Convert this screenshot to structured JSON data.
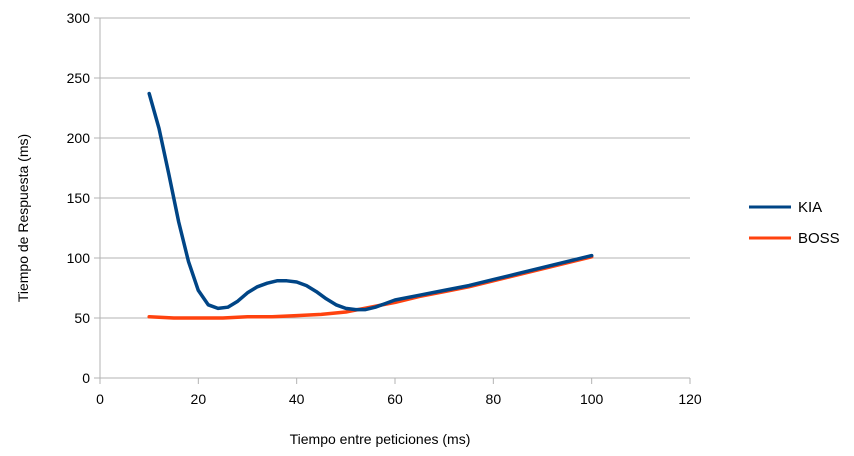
{
  "chart_data": {
    "type": "line",
    "xlabel": "Tiempo entre peticiones (ms)",
    "ylabel": "Tiempo de Respuesta (ms)",
    "xlim": [
      0,
      120
    ],
    "ylim": [
      0,
      300
    ],
    "xticks": [
      0,
      20,
      40,
      60,
      80,
      100,
      120
    ],
    "yticks": [
      0,
      50,
      100,
      150,
      200,
      250,
      300
    ],
    "grid": "horizontal",
    "legend_position": "right",
    "series": [
      {
        "name": "KIA",
        "color": "#004586",
        "x": [
          10,
          12,
          14,
          16,
          18,
          20,
          22,
          24,
          26,
          28,
          30,
          32,
          34,
          36,
          38,
          40,
          42,
          44,
          46,
          48,
          50,
          52,
          54,
          56,
          58,
          60,
          65,
          70,
          75,
          80,
          85,
          90,
          95,
          100
        ],
        "y": [
          237,
          208,
          170,
          130,
          97,
          73,
          61,
          58,
          59,
          64,
          71,
          76,
          79,
          81,
          81,
          80,
          77,
          72,
          66,
          61,
          58,
          57,
          57,
          59,
          62,
          65,
          69,
          73,
          77,
          82,
          87,
          92,
          97,
          102
        ]
      },
      {
        "name": "BOSS",
        "color": "#ff420e",
        "x": [
          10,
          15,
          20,
          25,
          30,
          35,
          40,
          45,
          50,
          55,
          60,
          65,
          70,
          75,
          80,
          85,
          90,
          95,
          100
        ],
        "y": [
          51,
          50,
          50,
          50,
          51,
          51,
          52,
          53,
          55,
          59,
          63,
          68,
          72,
          76,
          81,
          86,
          91,
          96,
          101
        ]
      }
    ]
  }
}
